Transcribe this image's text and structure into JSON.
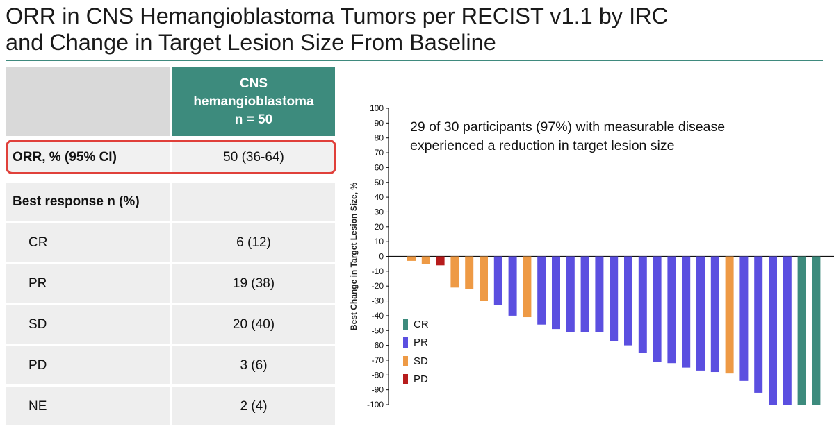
{
  "title": {
    "line1": "ORR in CNS Hemangioblastoma Tumors per RECIST v1.1 by IRC",
    "line2": "and Change in Target Lesion Size From Baseline"
  },
  "table": {
    "header_line1": "CNS",
    "header_line2": "hemangioblastoma",
    "header_line3": "n = 50",
    "rows": [
      {
        "label": "ORR, % (95% CI)",
        "value": "50 (36-64)"
      },
      {
        "label": "Best response n (%)",
        "value": ""
      },
      {
        "label": "CR",
        "value": "6 (12)"
      },
      {
        "label": "PR",
        "value": "19 (38)"
      },
      {
        "label": "SD",
        "value": "20 (40)"
      },
      {
        "label": "PD",
        "value": "3 (6)"
      },
      {
        "label": "NE",
        "value": "2 (4)"
      }
    ]
  },
  "colors": {
    "header_bg": "#3d8b7d",
    "highlight_border": "#e0403a",
    "CR": "#3d8b7d",
    "PR": "#5b4fe0",
    "SD": "#ee9a45",
    "PD": "#b71c1c"
  },
  "chart_data": {
    "type": "bar",
    "annotation_line1": "29 of 30 participants (97%) with measurable disease",
    "annotation_line2": "experienced a reduction in target lesion size",
    "ylabel": "Best Change in Target Lesion Size, %",
    "ylim": [
      -100,
      100
    ],
    "yticks": [
      100,
      90,
      80,
      70,
      60,
      50,
      40,
      30,
      20,
      10,
      0,
      -10,
      -20,
      -30,
      -40,
      -50,
      -60,
      -70,
      -80,
      -90,
      -100
    ],
    "grid": false,
    "legend_position": "bottom-left",
    "legend": [
      "CR",
      "PR",
      "SD",
      "PD"
    ],
    "bars": [
      {
        "response": "SD",
        "value": -3
      },
      {
        "response": "SD",
        "value": -5
      },
      {
        "response": "PD",
        "value": -6
      },
      {
        "response": "SD",
        "value": -21
      },
      {
        "response": "SD",
        "value": -22
      },
      {
        "response": "SD",
        "value": -30
      },
      {
        "response": "PR",
        "value": -33
      },
      {
        "response": "PR",
        "value": -40
      },
      {
        "response": "SD",
        "value": -41
      },
      {
        "response": "PR",
        "value": -46
      },
      {
        "response": "PR",
        "value": -49
      },
      {
        "response": "PR",
        "value": -51
      },
      {
        "response": "PR",
        "value": -51
      },
      {
        "response": "PR",
        "value": -51
      },
      {
        "response": "PR",
        "value": -57
      },
      {
        "response": "PR",
        "value": -60
      },
      {
        "response": "PR",
        "value": -65
      },
      {
        "response": "PR",
        "value": -71
      },
      {
        "response": "PR",
        "value": -72
      },
      {
        "response": "PR",
        "value": -75
      },
      {
        "response": "PR",
        "value": -77
      },
      {
        "response": "PR",
        "value": -78
      },
      {
        "response": "SD",
        "value": -79
      },
      {
        "response": "PR",
        "value": -84
      },
      {
        "response": "PR",
        "value": -92
      },
      {
        "response": "PR",
        "value": -100
      },
      {
        "response": "PR",
        "value": -100
      },
      {
        "response": "CR",
        "value": -100
      },
      {
        "response": "CR",
        "value": -100
      }
    ]
  }
}
